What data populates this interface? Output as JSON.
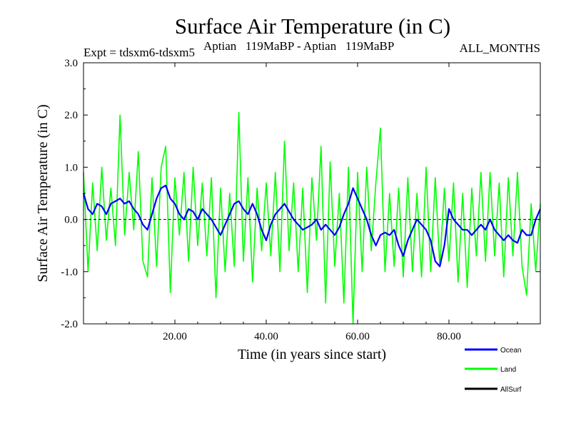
{
  "chart_data": {
    "type": "line",
    "title": "Surface Air Temperature (in C)",
    "subtitle_left": "Expt = tdsxm6-tdsxm5",
    "subtitle_center": "Aptian   119MaBP - Aptian   119MaBP",
    "subtitle_right": "ALL_MONTHS",
    "xlabel": "Time (in years since start)",
    "ylabel": "Surface Air Temperature (in C)",
    "xlim": [
      0,
      100
    ],
    "ylim": [
      -2.0,
      3.0
    ],
    "x_ticks": [
      20,
      40,
      60,
      80
    ],
    "x_tick_labels": [
      "20.00",
      "40.00",
      "60.00",
      "80.00"
    ],
    "y_ticks": [
      -2.0,
      -1.0,
      0.0,
      1.0,
      2.0,
      3.0
    ],
    "y_tick_labels": [
      "-2.0",
      "-1.0",
      "0.0",
      "1.0",
      "2.0",
      "3.0"
    ],
    "zero_line": true,
    "series": [
      {
        "name": "Land",
        "color": "#00ff00",
        "x": [
          0,
          1,
          2,
          3,
          4,
          5,
          6,
          7,
          8,
          9,
          10,
          11,
          12,
          13,
          14,
          15,
          16,
          17,
          18,
          19,
          20,
          21,
          22,
          23,
          24,
          25,
          26,
          27,
          28,
          29,
          30,
          31,
          32,
          33,
          34,
          35,
          36,
          37,
          38,
          39,
          40,
          41,
          42,
          43,
          44,
          45,
          46,
          47,
          48,
          49,
          50,
          51,
          52,
          53,
          54,
          55,
          56,
          57,
          58,
          59,
          60,
          61,
          62,
          63,
          64,
          65,
          66,
          67,
          68,
          69,
          70,
          71,
          72,
          73,
          74,
          75,
          76,
          77,
          78,
          79,
          80,
          81,
          82,
          83,
          84,
          85,
          86,
          87,
          88,
          89,
          90,
          91,
          92,
          93,
          94,
          95,
          96,
          97,
          98,
          99,
          100
        ],
        "values": [
          0.9,
          -1.0,
          0.7,
          -0.6,
          1.0,
          -0.4,
          0.6,
          -0.5,
          2.0,
          -0.3,
          0.9,
          -0.2,
          1.3,
          -0.8,
          -1.1,
          0.8,
          -0.9,
          1.0,
          1.4,
          -1.4,
          0.8,
          -0.3,
          0.9,
          -0.8,
          1.0,
          -0.5,
          0.7,
          -0.7,
          0.8,
          -1.5,
          0.6,
          -1.0,
          0.5,
          -0.9,
          2.05,
          -0.8,
          0.8,
          -1.2,
          0.6,
          -0.6,
          0.7,
          -0.7,
          0.9,
          -1.0,
          1.5,
          -0.6,
          0.7,
          -1.0,
          0.6,
          -1.4,
          0.8,
          -0.4,
          1.4,
          -1.6,
          1.1,
          -0.9,
          0.5,
          -1.6,
          1.0,
          -2.0,
          0.9,
          -1.0,
          1.0,
          -0.6,
          0.7,
          1.75,
          -1.0,
          0.5,
          -0.9,
          0.6,
          -1.1,
          0.8,
          -1.0,
          0.5,
          -1.1,
          1.0,
          -1.0,
          0.8,
          -0.9,
          0.6,
          -0.8,
          0.7,
          -1.2,
          0.5,
          -1.3,
          0.6,
          -0.7,
          0.9,
          -0.8,
          0.9,
          -0.7,
          0.7,
          -1.1,
          0.8,
          -0.7,
          0.9,
          -0.9,
          -1.45,
          0.3,
          -1.0,
          0.3
        ]
      },
      {
        "name": "Ocean",
        "color": "#0000ff",
        "x": [
          0,
          1,
          2,
          3,
          4,
          5,
          6,
          7,
          8,
          9,
          10,
          11,
          12,
          13,
          14,
          15,
          16,
          17,
          18,
          19,
          20,
          21,
          22,
          23,
          24,
          25,
          26,
          27,
          28,
          29,
          30,
          31,
          32,
          33,
          34,
          35,
          36,
          37,
          38,
          39,
          40,
          41,
          42,
          43,
          44,
          45,
          46,
          47,
          48,
          49,
          50,
          51,
          52,
          53,
          54,
          55,
          56,
          57,
          58,
          59,
          60,
          61,
          62,
          63,
          64,
          65,
          66,
          67,
          68,
          69,
          70,
          71,
          72,
          73,
          74,
          75,
          76,
          77,
          78,
          79,
          80,
          81,
          82,
          83,
          84,
          85,
          86,
          87,
          88,
          89,
          90,
          91,
          92,
          93,
          94,
          95,
          96,
          97,
          98,
          99,
          100
        ],
        "values": [
          0.5,
          0.2,
          0.1,
          0.3,
          0.25,
          0.1,
          0.3,
          0.35,
          0.4,
          0.3,
          0.35,
          0.2,
          0.1,
          -0.1,
          -0.2,
          0.1,
          0.4,
          0.6,
          0.65,
          0.4,
          0.3,
          0.1,
          0.0,
          0.2,
          0.15,
          0.0,
          0.2,
          0.1,
          0.0,
          -0.15,
          -0.3,
          -0.1,
          0.1,
          0.3,
          0.35,
          0.2,
          0.1,
          0.3,
          0.1,
          -0.2,
          -0.4,
          -0.1,
          0.1,
          0.2,
          0.3,
          0.15,
          0.0,
          -0.1,
          -0.2,
          -0.15,
          -0.1,
          0.0,
          -0.2,
          -0.1,
          -0.2,
          -0.3,
          -0.15,
          0.1,
          0.3,
          0.6,
          0.4,
          0.2,
          0.0,
          -0.3,
          -0.5,
          -0.3,
          -0.25,
          -0.3,
          -0.2,
          -0.5,
          -0.7,
          -0.4,
          -0.2,
          0.0,
          -0.1,
          -0.2,
          -0.4,
          -0.8,
          -0.9,
          -0.5,
          0.2,
          0.0,
          -0.1,
          -0.2,
          -0.2,
          -0.3,
          -0.2,
          -0.1,
          -0.2,
          0.0,
          -0.2,
          -0.3,
          -0.4,
          -0.3,
          -0.4,
          -0.45,
          -0.2,
          -0.3,
          -0.3,
          0.0,
          0.2
        ]
      }
    ],
    "legend": [
      {
        "name": "Ocean",
        "color": "#0000ff"
      },
      {
        "name": "Land",
        "color": "#00ff00"
      },
      {
        "name": "AllSurf",
        "color": "#000000"
      }
    ],
    "legend_position": "bottom-right"
  }
}
